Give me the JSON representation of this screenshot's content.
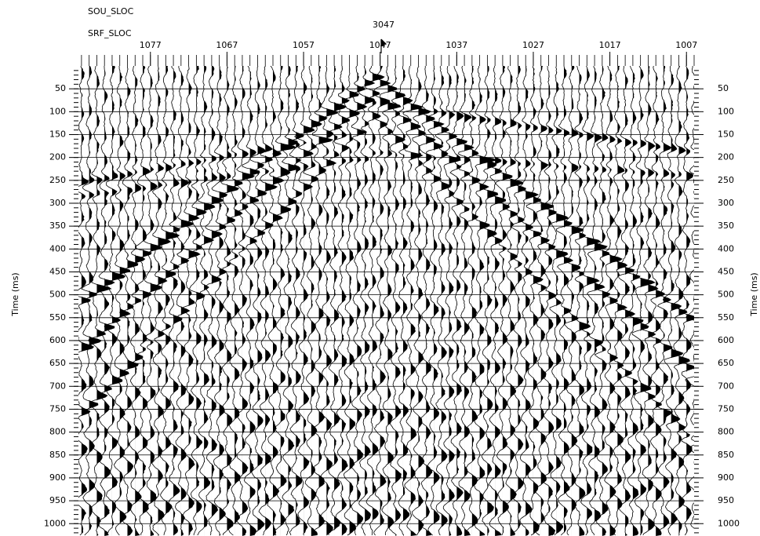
{
  "chart_data": {
    "type": "seismic",
    "source_label": "SOU_SLOC",
    "source_value": 3047,
    "x_label": "SRF_SLOC",
    "y_label": "Time (ms)",
    "xlim": [
      1086.4,
      1006
    ],
    "xticks": [
      1077,
      1067,
      1057,
      1047,
      1037,
      1027,
      1017,
      1007
    ],
    "ylim": [
      0,
      1027
    ],
    "yticks": [
      50,
      100,
      150,
      200,
      250,
      300,
      350,
      400,
      450,
      500,
      550,
      600,
      650,
      700,
      750,
      800,
      850,
      900,
      950,
      1000
    ],
    "grid": true,
    "color": "#000000"
  }
}
